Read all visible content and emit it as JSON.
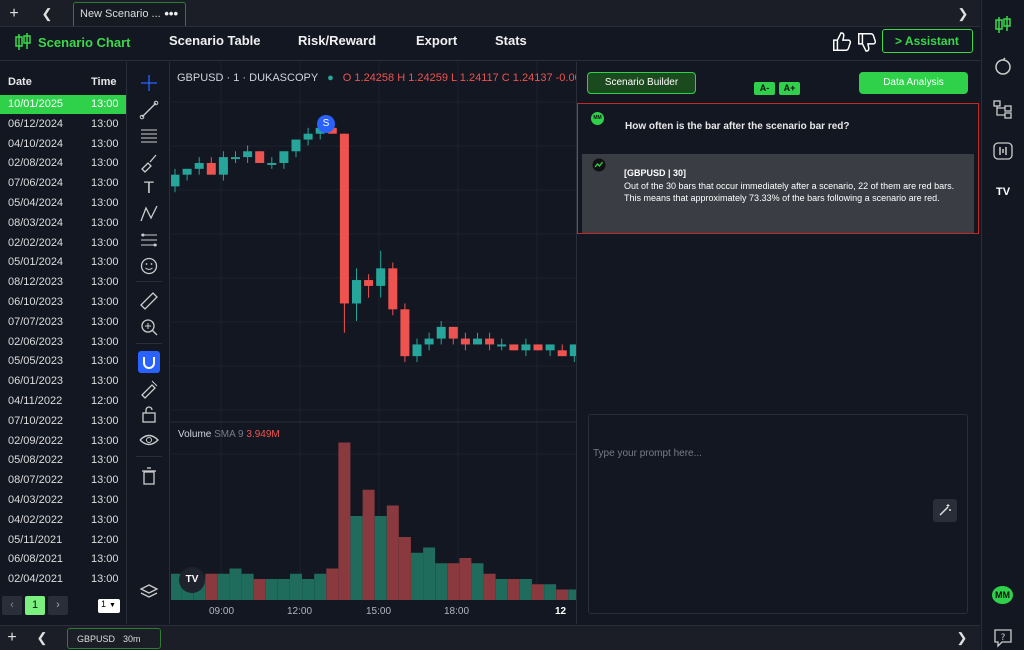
{
  "tabs": {
    "add_label": "+",
    "left_arrow": "❮",
    "right_arrow": "❯",
    "active_tab": "New Scenario ...",
    "menu_label": "•••"
  },
  "nav": {
    "brand": "Scenario Chart",
    "items": [
      "Scenario Table",
      "Risk/Reward",
      "Export",
      "Stats"
    ],
    "assistant_label": "> Assistant"
  },
  "date_list": {
    "date_header": "Date",
    "time_header": "Time",
    "rows": [
      {
        "date": "10/01/2025",
        "time": "13:00",
        "selected": true
      },
      {
        "date": "06/12/2024",
        "time": "13:00"
      },
      {
        "date": "04/10/2024",
        "time": "13:00"
      },
      {
        "date": "02/08/2024",
        "time": "13:00"
      },
      {
        "date": "07/06/2024",
        "time": "13:00"
      },
      {
        "date": "05/04/2024",
        "time": "13:00"
      },
      {
        "date": "08/03/2024",
        "time": "13:00"
      },
      {
        "date": "02/02/2024",
        "time": "13:00"
      },
      {
        "date": "05/01/2024",
        "time": "13:00"
      },
      {
        "date": "08/12/2023",
        "time": "13:00"
      },
      {
        "date": "06/10/2023",
        "time": "13:00"
      },
      {
        "date": "07/07/2023",
        "time": "13:00"
      },
      {
        "date": "02/06/2023",
        "time": "13:00"
      },
      {
        "date": "05/05/2023",
        "time": "13:00"
      },
      {
        "date": "06/01/2023",
        "time": "13:00"
      },
      {
        "date": "04/11/2022",
        "time": "12:00"
      },
      {
        "date": "07/10/2022",
        "time": "13:00"
      },
      {
        "date": "02/09/2022",
        "time": "13:00"
      },
      {
        "date": "05/08/2022",
        "time": "13:00"
      },
      {
        "date": "08/07/2022",
        "time": "13:00"
      },
      {
        "date": "04/03/2022",
        "time": "13:00"
      },
      {
        "date": "04/02/2022",
        "time": "13:00"
      },
      {
        "date": "05/11/2021",
        "time": "12:00"
      },
      {
        "date": "06/08/2021",
        "time": "13:00"
      },
      {
        "date": "02/04/2021",
        "time": "13:00"
      }
    ],
    "pager": {
      "prev": "‹",
      "page": "1",
      "next": "›",
      "per_page": "1"
    }
  },
  "chart": {
    "symbol_line": "GBPUSD · 1 · DUKASCOPY",
    "ohlc": "O 1.24258  H 1.24259  L 1.24117  C 1.24137  -0.00",
    "marker": "S",
    "volume_label": "Volume",
    "volume_sma": "SMA 9",
    "volume_value": "3.949M",
    "logo": "TV",
    "x_ticks": [
      "09:00",
      "12:00",
      "15:00",
      "18:00",
      "12"
    ]
  },
  "chart_data": {
    "type": "candlestick",
    "up_color": "#26a69a",
    "down_color": "#ef5350",
    "candles": [
      [
        1.242,
        1.2423,
        1.2419,
        1.2422
      ],
      [
        1.2422,
        1.2423,
        1.2421,
        1.2423
      ],
      [
        1.2423,
        1.2425,
        1.2422,
        1.2424
      ],
      [
        1.2424,
        1.2425,
        1.2422,
        1.2422
      ],
      [
        1.2422,
        1.2426,
        1.2421,
        1.2425
      ],
      [
        1.2425,
        1.2426,
        1.2424,
        1.2425
      ],
      [
        1.2425,
        1.2427,
        1.2424,
        1.2426
      ],
      [
        1.2426,
        1.2426,
        1.2424,
        1.2424
      ],
      [
        1.2424,
        1.2425,
        1.2423,
        1.2424
      ],
      [
        1.2424,
        1.2426,
        1.2423,
        1.2426
      ],
      [
        1.2426,
        1.2428,
        1.2425,
        1.2428
      ],
      [
        1.2428,
        1.243,
        1.2427,
        1.2429
      ],
      [
        1.2429,
        1.2431,
        1.2428,
        1.243
      ],
      [
        1.243,
        1.2431,
        1.2429,
        1.2429
      ],
      [
        1.2429,
        1.2429,
        1.2395,
        1.24
      ],
      [
        1.24,
        1.2406,
        1.2397,
        1.2404
      ],
      [
        1.2404,
        1.2405,
        1.2401,
        1.2403
      ],
      [
        1.2403,
        1.2409,
        1.2401,
        1.2406
      ],
      [
        1.2406,
        1.2407,
        1.2398,
        1.2399
      ],
      [
        1.2399,
        1.24,
        1.239,
        1.2391
      ],
      [
        1.2391,
        1.2394,
        1.239,
        1.2393
      ],
      [
        1.2393,
        1.2395,
        1.2392,
        1.2394
      ],
      [
        1.2394,
        1.2397,
        1.2393,
        1.2396
      ],
      [
        1.2396,
        1.2396,
        1.2393,
        1.2394
      ],
      [
        1.2394,
        1.2395,
        1.2392,
        1.2393
      ],
      [
        1.2393,
        1.2395,
        1.2393,
        1.2394
      ],
      [
        1.2394,
        1.2395,
        1.2392,
        1.2393
      ],
      [
        1.2393,
        1.2394,
        1.2392,
        1.2393
      ],
      [
        1.2393,
        1.2393,
        1.2392,
        1.2392
      ],
      [
        1.2392,
        1.2394,
        1.2391,
        1.2393
      ],
      [
        1.2393,
        1.2393,
        1.2392,
        1.2392
      ],
      [
        1.2392,
        1.2393,
        1.2391,
        1.2393
      ],
      [
        1.2392,
        1.2393,
        1.2391,
        1.2391
      ],
      [
        1.2391,
        1.2393,
        1.239,
        1.2393
      ]
    ],
    "volume": [
      5,
      5,
      4,
      5,
      5,
      6,
      5,
      4,
      4,
      4,
      5,
      4,
      5,
      6,
      30,
      16,
      21,
      16,
      18,
      12,
      9,
      10,
      7,
      7,
      8,
      7,
      5,
      4,
      4,
      4,
      3,
      3,
      2,
      2
    ],
    "volume_max": 32
  },
  "panel": {
    "scenario_builder": "Scenario Builder",
    "font_minus": "A-",
    "font_plus": "A+",
    "data_analysis": "Data Analysis",
    "user_avatar": "MM",
    "user_message": "How often is the bar after the scenario bar red?",
    "bot_title": "[GBPUSD | 30]",
    "bot_message": "Out of the 30 bars that occur immediately after a scenario, 22 of them are red bars. This means that approximately 73.33% of the bars following a scenario are red.",
    "prompt_placeholder": "Type your prompt here..."
  },
  "sidebar": {
    "user_badge": "MM",
    "tv_mark": "TV"
  },
  "bottom": {
    "add_label": "+",
    "left_arrow": "❮",
    "right_arrow": "❯",
    "symbol": "GBPUSD",
    "interval": "30m"
  },
  "colors": {
    "accent": "#2fd14a",
    "alert_border": "#c62828",
    "background": "#131722"
  }
}
